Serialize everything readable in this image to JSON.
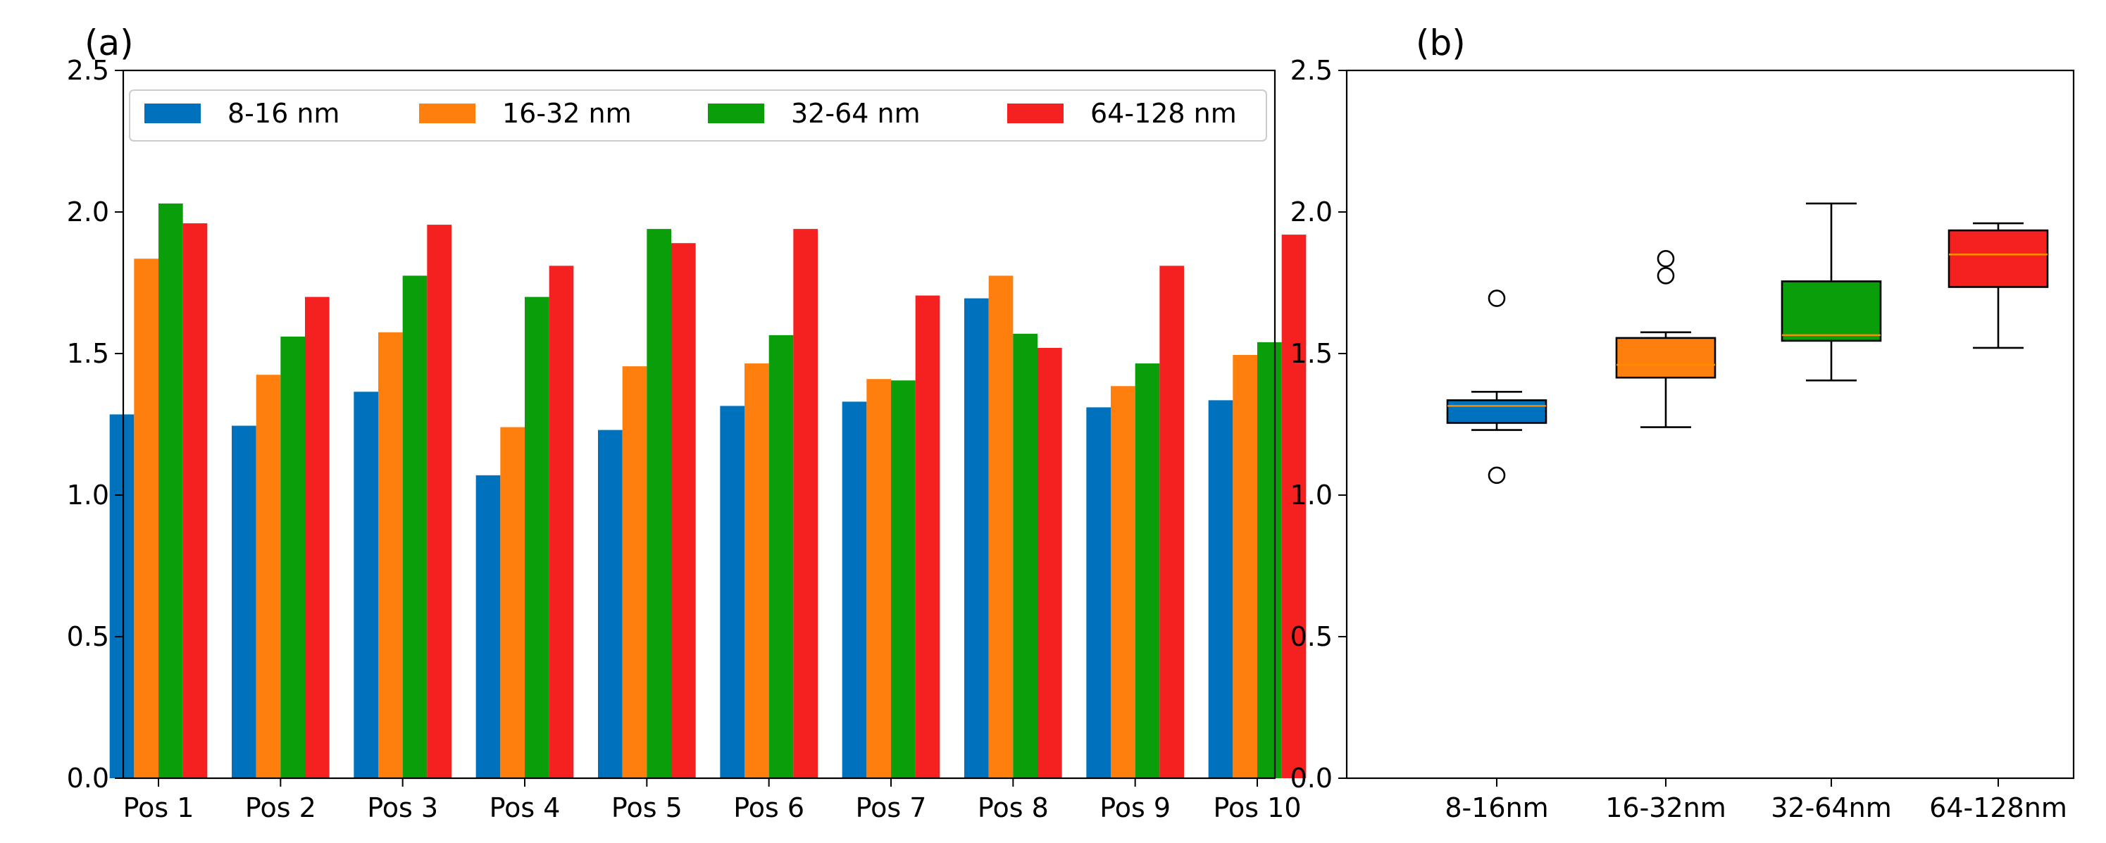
{
  "chart_data": [
    {
      "type": "bar",
      "panel_label": "(a)",
      "categories": [
        "Pos 1",
        "Pos 2",
        "Pos 3",
        "Pos 4",
        "Pos 5",
        "Pos 6",
        "Pos 7",
        "Pos 8",
        "Pos 9",
        "Pos 10"
      ],
      "series": [
        {
          "name": "8-16 nm",
          "color": "#0072bd",
          "values": [
            1.285,
            1.245,
            1.365,
            1.07,
            1.23,
            1.315,
            1.33,
            1.695,
            1.31,
            1.335
          ]
        },
        {
          "name": "16-32 nm",
          "color": "#ff7f0e",
          "values": [
            1.835,
            1.425,
            1.575,
            1.24,
            1.455,
            1.465,
            1.41,
            1.775,
            1.385,
            1.495
          ]
        },
        {
          "name": "32-64 nm",
          "color": "#0a9e0a",
          "values": [
            2.03,
            1.56,
            1.775,
            1.7,
            1.94,
            1.565,
            1.405,
            1.57,
            1.465,
            1.54
          ]
        },
        {
          "name": "64-128 nm",
          "color": "#f52020",
          "values": [
            1.96,
            1.7,
            1.955,
            1.81,
            1.89,
            1.94,
            1.705,
            1.52,
            1.81,
            1.92
          ]
        }
      ],
      "ylim": [
        0.0,
        2.5
      ],
      "yticks": [
        "0.0",
        "0.5",
        "1.0",
        "1.5",
        "2.0",
        "2.5"
      ],
      "xlabel": "",
      "ylabel": "",
      "legend_position": "top",
      "grid": false
    },
    {
      "type": "box",
      "panel_label": "(b)",
      "categories": [
        "8-16nm",
        "16-32nm",
        "32-64nm",
        "64-128nm"
      ],
      "boxes": [
        {
          "name": "8-16nm",
          "color": "#0072bd",
          "whisker_low": 1.23,
          "q1": 1.255,
          "median": 1.315,
          "q3": 1.335,
          "whisker_high": 1.365,
          "outliers": [
            1.695,
            1.07
          ]
        },
        {
          "name": "16-32nm",
          "color": "#ff7f0e",
          "whisker_low": 1.24,
          "q1": 1.415,
          "median": 1.46,
          "q3": 1.555,
          "whisker_high": 1.575,
          "outliers": [
            1.835,
            1.775
          ]
        },
        {
          "name": "32-64nm",
          "color": "#0a9e0a",
          "whisker_low": 1.405,
          "q1": 1.545,
          "median": 1.565,
          "q3": 1.755,
          "whisker_high": 2.03,
          "outliers": []
        },
        {
          "name": "64-128nm",
          "color": "#f52020",
          "whisker_low": 1.52,
          "q1": 1.735,
          "median": 1.85,
          "q3": 1.935,
          "whisker_high": 1.96,
          "outliers": []
        }
      ],
      "median_color": "#ff8c00",
      "ylim": [
        0.0,
        2.5
      ],
      "yticks": [
        "0.0",
        "0.5",
        "1.0",
        "1.5",
        "2.0",
        "2.5"
      ],
      "xlabel": "",
      "ylabel": "",
      "grid": false
    }
  ]
}
